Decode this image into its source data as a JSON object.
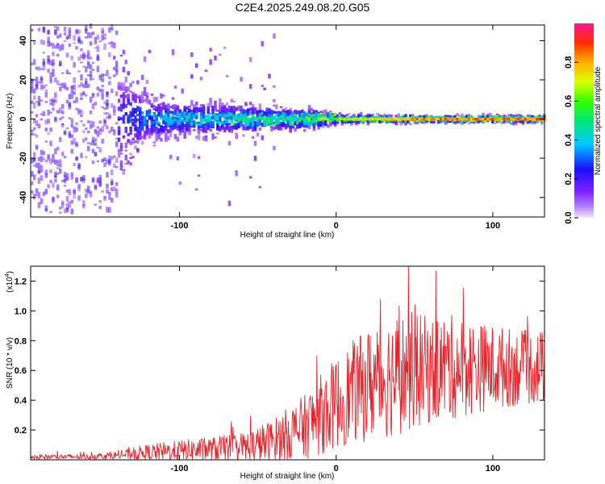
{
  "title": "C2E4.2025.249.08.20.G05",
  "chart_data": [
    {
      "type": "heatmap",
      "xlabel": "Height of straight line (km)",
      "ylabel": "Frequency (Hz)",
      "xlim": [
        -195,
        133
      ],
      "ylim": [
        -50,
        48
      ],
      "xticks": [
        -100,
        0,
        100
      ],
      "xtick_labels": [
        "-100",
        "0",
        "100"
      ],
      "yticks": [
        -40,
        -20,
        0,
        20,
        40
      ],
      "ytick_labels": [
        "-40",
        "-20",
        "0",
        "20",
        "40"
      ],
      "colorbar": {
        "label": "Normalized spectral amplitude",
        "range": [
          0,
          1
        ],
        "ticks": [
          0.0,
          0.2,
          0.4,
          0.6,
          0.8
        ],
        "tick_labels": [
          "0.0",
          "0.2",
          "0.4",
          "0.6",
          "0.8"
        ]
      },
      "description_profile": {
        "x": [
          -195,
          -150,
          -120,
          -100,
          -80,
          -60,
          -40,
          -20,
          0,
          50,
          100,
          133
        ],
        "band_halfwidth_hz": [
          48,
          40,
          14,
          10,
          10,
          9,
          7,
          6,
          3,
          2.5,
          2.5,
          2.5
        ],
        "peak_amplitude": [
          0.15,
          0.2,
          0.35,
          0.45,
          0.45,
          0.5,
          0.55,
          0.6,
          0.7,
          0.85,
          0.9,
          0.9
        ]
      }
    },
    {
      "type": "line",
      "xlabel": "Height of straight line (km)",
      "ylabel": "SNR (10 * v/v)",
      "y_multiplier": "(x10^4)",
      "multiplier_base": "(x10",
      "multiplier_exp": "4",
      "multiplier_close": ")",
      "xlim": [
        -195,
        133
      ],
      "ylim": [
        0,
        1.3
      ],
      "xticks": [
        -100,
        0,
        100
      ],
      "xtick_labels": [
        "-100",
        "0",
        "100"
      ],
      "yticks": [
        0.2,
        0.4,
        0.6,
        0.8,
        1.0,
        1.2
      ],
      "ytick_labels": [
        "0.2",
        "0.4",
        "0.6",
        "0.8",
        "1.0",
        "1.2"
      ],
      "color": "#e8232b",
      "envelope": {
        "x": [
          -195,
          -160,
          -140,
          -120,
          -100,
          -80,
          -60,
          -50,
          -40,
          -30,
          -20,
          -10,
          0,
          10,
          20,
          30,
          40,
          50,
          60,
          70,
          80,
          90,
          100,
          110,
          120,
          133
        ],
        "base": [
          0.02,
          0.02,
          0.03,
          0.05,
          0.06,
          0.07,
          0.08,
          0.1,
          0.13,
          0.18,
          0.22,
          0.3,
          0.38,
          0.45,
          0.5,
          0.55,
          0.58,
          0.6,
          0.6,
          0.62,
          0.62,
          0.62,
          0.62,
          0.62,
          0.62,
          0.62
        ],
        "amp": [
          0.02,
          0.02,
          0.03,
          0.06,
          0.08,
          0.09,
          0.12,
          0.14,
          0.16,
          0.2,
          0.24,
          0.3,
          0.34,
          0.38,
          0.42,
          0.46,
          0.46,
          0.44,
          0.4,
          0.4,
          0.38,
          0.34,
          0.32,
          0.3,
          0.28,
          0.28
        ]
      }
    }
  ]
}
